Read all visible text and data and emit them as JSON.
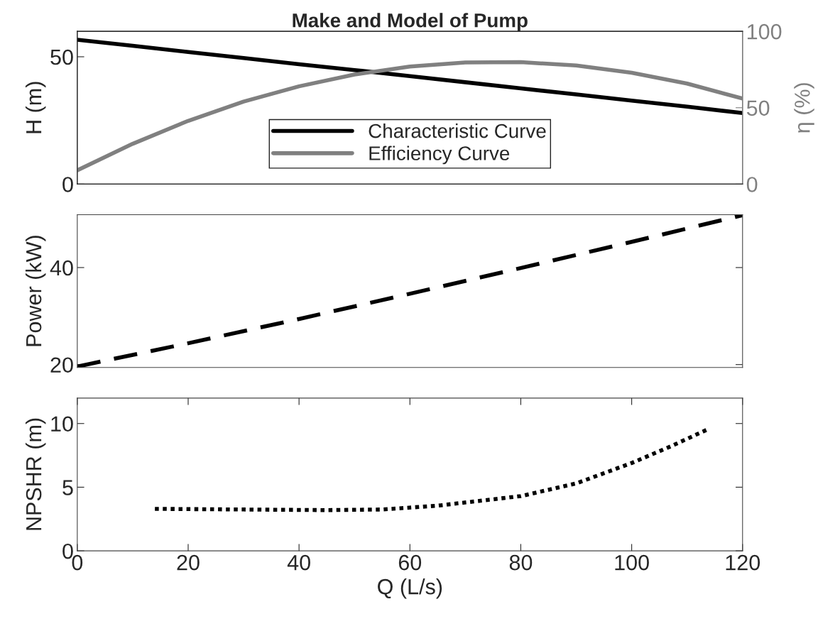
{
  "chart_data": [
    {
      "type": "line",
      "title": "Make and Model of Pump",
      "ylabel": "H (m)",
      "y2label": "η (%)",
      "x": [
        0,
        10,
        20,
        30,
        40,
        50,
        60,
        70,
        80,
        90,
        100,
        110,
        120
      ],
      "xlim": [
        0,
        120
      ],
      "ylim": [
        0,
        60
      ],
      "yticks": [
        0,
        50
      ],
      "y2lim": [
        0,
        100
      ],
      "y2ticks": [
        0,
        50,
        100
      ],
      "tick_labels": "y",
      "legend": "bottom",
      "grid": false,
      "series": [
        {
          "name": "Characteristic Curve",
          "color": "#000000",
          "line_style": "solid",
          "values": [
            56.7,
            54.3,
            51.9,
            49.5,
            47.1,
            44.8,
            42.4,
            40.0,
            37.6,
            35.2,
            32.8,
            30.4,
            27.9
          ]
        },
        {
          "name": "Efficiency Curve",
          "color": "#808080",
          "line_style": "solid",
          "axis": "y2",
          "values": [
            9,
            26.4,
            41.4,
            54,
            64,
            71.7,
            76.9,
            79.6,
            79.8,
            77.6,
            72.9,
            65.8,
            56
          ]
        }
      ]
    },
    {
      "type": "line",
      "ylabel": "Power (kW)",
      "x": [
        0,
        20,
        40,
        60,
        80,
        100,
        120
      ],
      "xlim": [
        0,
        120
      ],
      "ylim": [
        19.4,
        50.9
      ],
      "yticks": [
        20,
        40
      ],
      "tick_labels": "y",
      "grid": false,
      "series": [
        {
          "color": "#000000",
          "line_style": "dashed",
          "values": [
            19.6,
            24.4,
            29.4,
            34.6,
            39.9,
            45.3,
            50.8
          ]
        }
      ]
    },
    {
      "type": "line",
      "xlabel": "Q (L/s)",
      "ylabel": "NPSHR (m)",
      "x": [
        14,
        30,
        45,
        55,
        65,
        80,
        90,
        100,
        107,
        114
      ],
      "xlim": [
        0,
        120
      ],
      "xticks": [
        0,
        20,
        40,
        60,
        80,
        100,
        120
      ],
      "ylim": [
        0,
        12
      ],
      "yticks": [
        0,
        5,
        10
      ],
      "grid": false,
      "series": [
        {
          "color": "#000000",
          "line_style": "dotted",
          "values": [
            3.3,
            3.25,
            3.2,
            3.25,
            3.55,
            4.3,
            5.3,
            6.9,
            8.2,
            9.6
          ]
        }
      ]
    }
  ]
}
